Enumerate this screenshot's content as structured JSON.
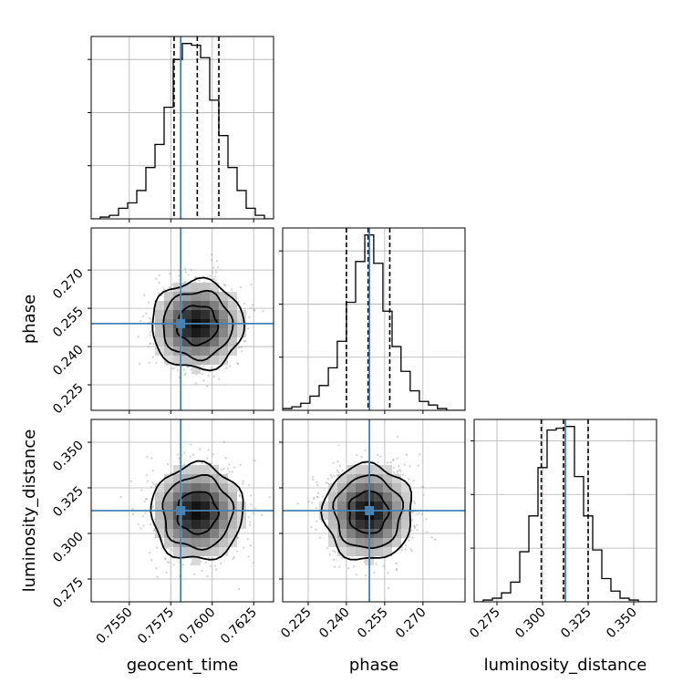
{
  "chart_data": {
    "type": "corner",
    "parameters": [
      "geocent_time",
      "phase",
      "luminosity_distance"
    ],
    "truths": {
      "geocent_time": 0.7581,
      "phase": 0.249,
      "luminosity_distance": 0.3125
    },
    "colors": {
      "truth": "#4682b4",
      "hist": "#000000",
      "grid": "#b0b0b0"
    },
    "ranges": {
      "geocent_time": [
        0.7527,
        0.7637
      ],
      "phase": [
        0.215,
        0.2865
      ],
      "luminosity_distance": [
        0.2625,
        0.3625
      ]
    },
    "ticks": {
      "geocent_time": {
        "values": [
          0.755,
          0.7575,
          0.76,
          0.7625
        ],
        "labels": [
          "0.7550",
          "0.7575",
          "0.7600",
          "0.7625"
        ]
      },
      "phase": {
        "values": [
          0.225,
          0.24,
          0.255,
          0.27
        ],
        "labels": [
          "0.225",
          "0.240",
          "0.255",
          "0.270"
        ]
      },
      "luminosity_distance": {
        "values": [
          0.275,
          0.3,
          0.325,
          0.35
        ],
        "labels": [
          "0.275",
          "0.300",
          "0.325",
          "0.350"
        ]
      }
    },
    "quantiles": {
      "geocent_time": [
        0.7577,
        0.7591,
        0.7604
      ],
      "phase": [
        0.24,
        0.2485,
        0.257
      ],
      "luminosity_distance": [
        0.2993,
        0.3115,
        0.325
      ]
    },
    "histograms": {
      "geocent_time": {
        "edges": [
          0.7527,
          0.75325,
          0.7538,
          0.75435,
          0.7549,
          0.75545,
          0.756,
          0.75655,
          0.7571,
          0.75765,
          0.7582,
          0.75875,
          0.7593,
          0.75985,
          0.7604,
          0.76095,
          0.7615,
          0.76205,
          0.7626,
          0.76315,
          0.7637
        ],
        "counts": [
          0,
          1,
          2,
          6,
          9,
          16,
          29,
          42,
          63,
          90,
          99,
          98,
          91,
          67,
          47,
          29,
          16,
          6,
          2,
          0
        ]
      },
      "phase": {
        "edges": [
          0.215,
          0.2186,
          0.2221,
          0.2257,
          0.2293,
          0.2329,
          0.2364,
          0.24,
          0.2436,
          0.2472,
          0.2507,
          0.2543,
          0.2579,
          0.2614,
          0.265,
          0.2686,
          0.2722,
          0.2757,
          0.2793,
          0.2829,
          0.2865
        ],
        "counts": [
          1,
          2,
          4,
          8,
          14,
          24,
          39,
          61,
          84,
          99,
          83,
          56,
          36,
          22,
          11,
          5,
          3,
          1,
          0,
          0
        ]
      },
      "luminosity_distance": {
        "edges": [
          0.2625,
          0.2675,
          0.2725,
          0.2775,
          0.2825,
          0.2875,
          0.2925,
          0.2975,
          0.3025,
          0.3075,
          0.3125,
          0.3175,
          0.3225,
          0.3275,
          0.3325,
          0.3375,
          0.3425,
          0.3475,
          0.3525,
          0.3575,
          0.3625
        ],
        "counts": [
          0,
          1,
          2,
          5,
          11,
          28,
          48,
          75,
          96,
          97,
          98,
          70,
          48,
          29,
          13,
          6,
          2,
          1,
          0,
          0
        ]
      }
    },
    "contour_levels": [
      "inner",
      "middle",
      "outer"
    ],
    "xlabels": [
      "geocent_time",
      "phase",
      "luminosity_distance"
    ],
    "ylabels": [
      "phase",
      "luminosity_distance"
    ],
    "grid": true
  }
}
